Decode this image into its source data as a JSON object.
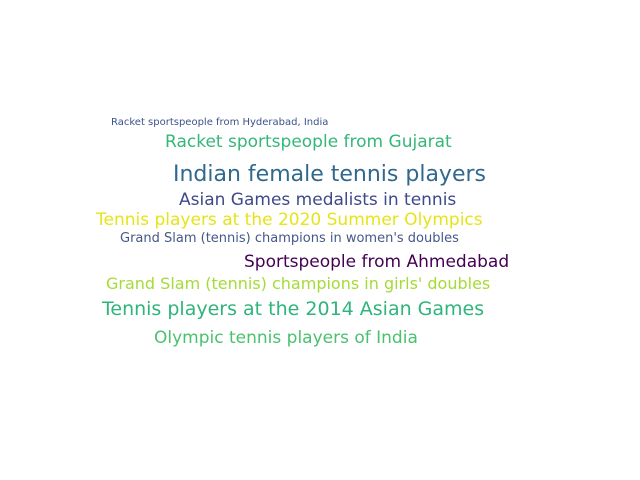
{
  "words": [
    {
      "text": "Racket sportspeople from Hyderabad, India",
      "color": "#3b528b"
    },
    {
      "text": "Racket sportspeople from Gujarat",
      "color": "#35b779"
    },
    {
      "text": "Indian female tennis players",
      "color": "#31688e"
    },
    {
      "text": "Asian Games medalists in tennis",
      "color": "#3e4989"
    },
    {
      "text": "Tennis players at the 2020 Summer Olympics",
      "color": "#e6e419"
    },
    {
      "text": "Grand Slam (tennis) champions in women's doubles",
      "color": "#46578a"
    },
    {
      "text": "Sportspeople from Ahmedabad",
      "color": "#440154"
    },
    {
      "text": "Grand Slam (tennis) champions in girls' doubles",
      "color": "#a5db36"
    },
    {
      "text": "Tennis players at the 2014 Asian Games",
      "color": "#2fb47c"
    },
    {
      "text": "Olympic tennis players of India",
      "color": "#4ac16d"
    }
  ]
}
